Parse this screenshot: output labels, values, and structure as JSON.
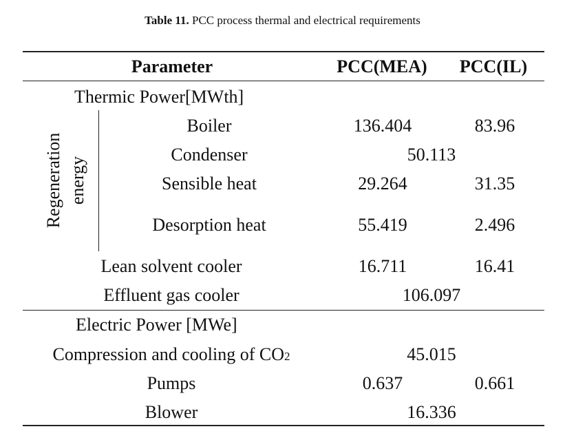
{
  "caption": {
    "label": "Table 11.",
    "text": "PCC process thermal and electrical requirements"
  },
  "header": {
    "parameter": "Parameter",
    "mea": "PCC(MEA)",
    "il": "PCC(IL)"
  },
  "thermic": {
    "section_label": "Thermic Power[MWth]",
    "group_label_1": "Regeneration",
    "group_label_2": "energy",
    "rows": [
      {
        "label": "Boiler",
        "mea": "136.404",
        "il": "83.96"
      },
      {
        "label": "Condenser",
        "shared": "50.113"
      },
      {
        "label": "Sensible heat",
        "mea": "29.264",
        "il": "31.35"
      },
      {
        "label": "Desorption heat",
        "mea": "55.419",
        "il": "2.496"
      },
      {
        "label": "Lean solvent cooler",
        "mea": "16.711",
        "il": "16.41"
      },
      {
        "label": "Effluent gas cooler",
        "shared": "106.097"
      }
    ]
  },
  "electric": {
    "section_label": "Electric Power [MWe]",
    "rows": [
      {
        "label": "Compression and cooling of CO",
        "sub": "2",
        "shared": "45.015"
      },
      {
        "label": "Pumps",
        "mea": "0.637",
        "il": "0.661"
      },
      {
        "label": "Blower",
        "shared": "16.336"
      }
    ]
  }
}
